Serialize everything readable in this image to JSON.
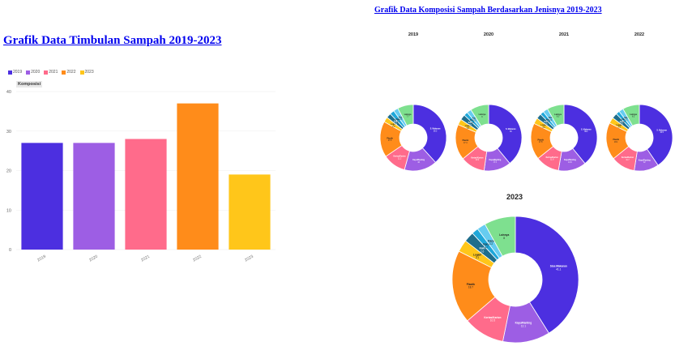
{
  "page": {
    "left_title": "Grafik Data Timbulan Sampah 2019-2023",
    "right_title": "Grafik Data Komposisi Sampah Berdasarkan Jenisnya 2019-2023",
    "tooltip_label": "Komposisi"
  },
  "colors": {
    "2019": "#4c2fe0",
    "2020": "#9d5ee4",
    "2021": "#ff6b8b",
    "2022": "#ff8c1a",
    "2023": "#ffc61a"
  },
  "chart_data": [
    {
      "type": "bar",
      "title": "Grafik Data Timbulan Sampah 2019-2023",
      "categories": [
        "2019",
        "2020",
        "2021",
        "2022",
        "2023"
      ],
      "values": [
        27,
        27,
        28,
        37,
        19
      ],
      "ylim": [
        0,
        40
      ],
      "yticks": [
        "0",
        "10",
        "20",
        "30",
        "40"
      ],
      "legend": [
        "2019",
        "2020",
        "2021",
        "2022",
        "2023"
      ],
      "legend_position": "top-left",
      "grid": true
    },
    {
      "type": "pie",
      "title": "Grafik Data Komposisi Sampah Berdasarkan Jenisnya 2019-2023",
      "subplot_titles": [
        "2019",
        "2020",
        "2021",
        "2022",
        "2023"
      ],
      "slice_colors": [
        "#4c2fe0",
        "#9d5ee4",
        "#ff6b8b",
        "#ff8c1a",
        "#ffc61a",
        "#1f6e8c",
        "#1fa7d9",
        "#66ccf0",
        "#7ee08f"
      ],
      "donuts": [
        {
          "year": "2019",
          "slices": [
            {
              "label": "S. Makanan",
              "value": 38.3
            },
            {
              "label": "Kayu/Ranting",
              "value": 16
            },
            {
              "label": "Kertas/Karton",
              "value": 11.2
            },
            {
              "label": "Plastik",
              "value": 17.5
            },
            {
              "label": "Logam",
              "value": 2.5
            },
            {
              "label": "Kain",
              "value": 2.3
            },
            {
              "label": "Karet",
              "value": 2.2
            },
            {
              "label": "Kaca",
              "value": 2.3
            },
            {
              "label": "Lainnya",
              "value": 7.7
            }
          ]
        },
        {
          "year": "2020",
          "slices": [
            {
              "label": "S. Makanan",
              "value": 39
            },
            {
              "label": "Kayu/Ranting",
              "value": 13.2
            },
            {
              "label": "Kertas/Karton",
              "value": 11.9
            },
            {
              "label": "Plastik",
              "value": 17.4
            },
            {
              "label": "Logam",
              "value": 2.8
            },
            {
              "label": "Kain",
              "value": 2.6
            },
            {
              "label": "Karet",
              "value": 1.9
            },
            {
              "label": "Kaca",
              "value": 2.2
            },
            {
              "label": "Lainnya",
              "value": 9
            }
          ]
        },
        {
          "year": "2021",
          "slices": [
            {
              "label": "S. Makanan",
              "value": 39.1
            },
            {
              "label": "Kayu/Ranting",
              "value": 13.6
            },
            {
              "label": "Kertas/Karton",
              "value": 11.6
            },
            {
              "label": "Plastik",
              "value": 17.8
            },
            {
              "label": "Logam",
              "value": 2.9
            },
            {
              "label": "Kain",
              "value": 2.5
            },
            {
              "label": "Karet",
              "value": 1.8
            },
            {
              "label": "Kaca",
              "value": 2.4
            },
            {
              "label": "Lainnya",
              "value": 8.3
            }
          ]
        },
        {
          "year": "2022",
          "slices": [
            {
              "label": "S. Makanan",
              "value": 40.5
            },
            {
              "label": "Kayu/Ranting",
              "value": 12
            },
            {
              "label": "Kertas/Karton",
              "value": 11.7
            },
            {
              "label": "Plastik",
              "value": 18.1
            },
            {
              "label": "Logam",
              "value": 2.9
            },
            {
              "label": "Kain",
              "value": 2.6
            },
            {
              "label": "Karet",
              "value": 1.8
            },
            {
              "label": "Kaca",
              "value": 2.2
            },
            {
              "label": "Lainnya",
              "value": 8.2
            }
          ]
        },
        {
          "year": "2023",
          "slices": [
            {
              "label": "Sisa Makanan",
              "value": 41.1
            },
            {
              "label": "Kayu/Ranting",
              "value": 12.1
            },
            {
              "label": "Kertas/Karton",
              "value": 10.5
            },
            {
              "label": "Plastik",
              "value": 18.7
            },
            {
              "label": "Logam",
              "value": 3.1
            },
            {
              "label": "Kain",
              "value": 2.6
            },
            {
              "label": "Karet",
              "value": 1.7
            },
            {
              "label": "Kaca",
              "value": 2.2
            },
            {
              "label": "Lainnya",
              "value": 8
            }
          ]
        }
      ]
    }
  ]
}
